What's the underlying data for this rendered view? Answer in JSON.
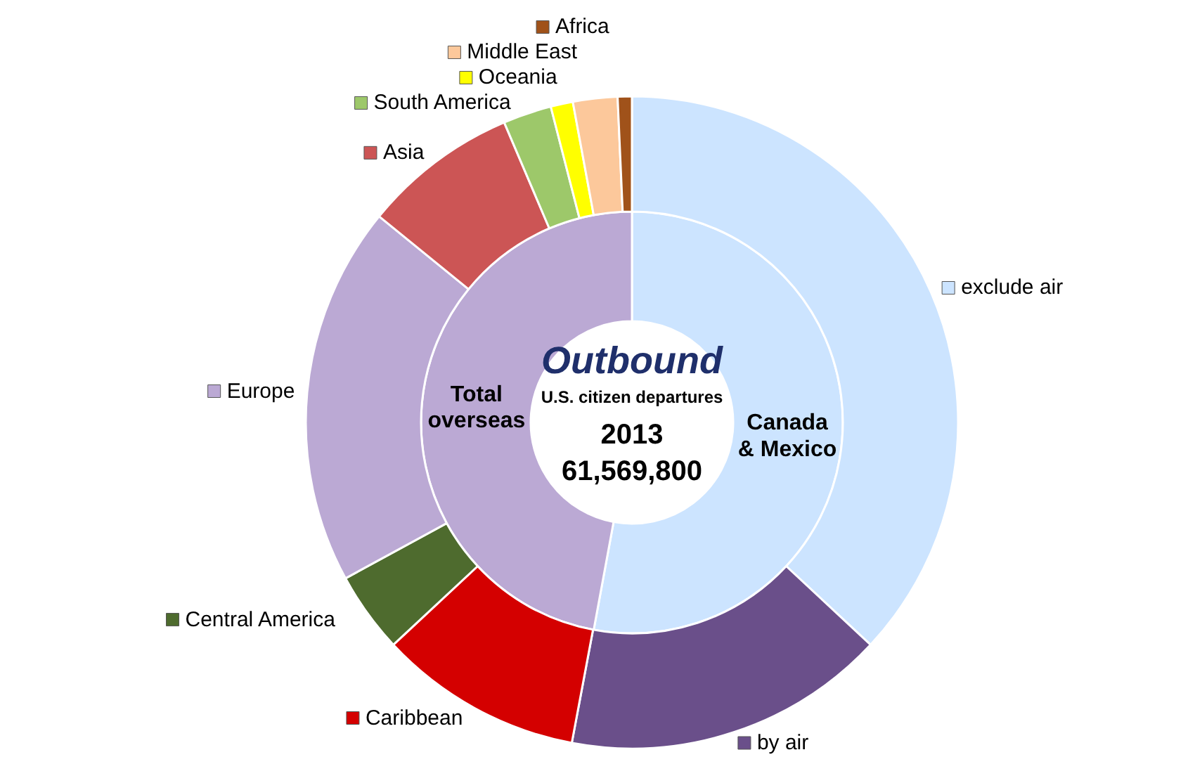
{
  "chart_data": {
    "type": "donut",
    "title": "Outbound",
    "subtitle": "U.S. citizen departures",
    "annotations": [
      "2013",
      "61,569,800"
    ],
    "legend": "left",
    "categories": [
      "Canada\n& Mexico",
      "Total\noverseas",
      "exclude air",
      "by air",
      "Caribbean",
      "Central America",
      "Europe",
      "Asia",
      "South America",
      "Oceania",
      "Middle East",
      "Africa"
    ],
    "colors": [
      "#cce4ff",
      "#bba9d4",
      "#cce4ff",
      "#6a4f8a",
      "#d40000",
      "#4e6b2e",
      "#bba9d4",
      "#cc5555",
      "#9dc86a",
      "#ffff00",
      "#fcc89b",
      "#a0521a"
    ],
    "series": [
      {
        "values": [
          52.9,
          47.1,
          null,
          null,
          null,
          null,
          null,
          null,
          null,
          null,
          null,
          null
        ]
      },
      {
        "values": [
          null,
          null,
          36.9,
          16.0,
          10.1,
          4.0,
          18.8,
          7.7,
          2.4,
          1.1,
          2.2,
          0.7
        ]
      }
    ]
  }
}
